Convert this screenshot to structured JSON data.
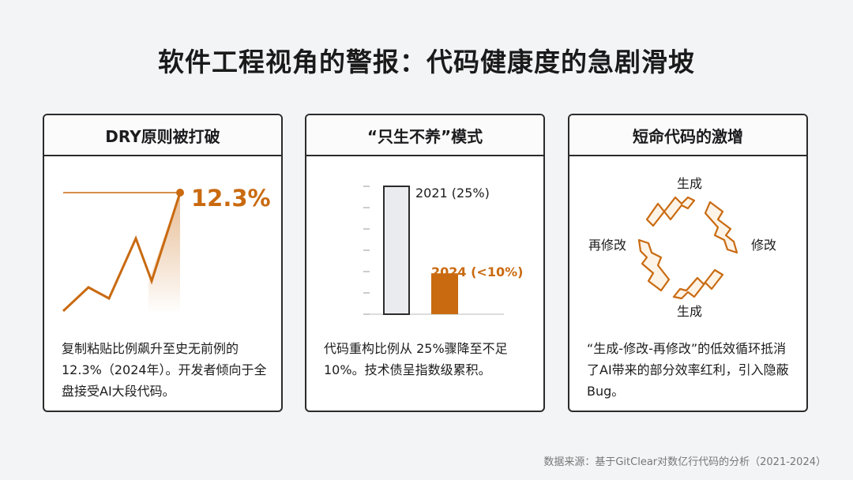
{
  "title": "软件工程视角的警报：代码健康度的急剧滑坡",
  "colors": {
    "accent": "#c96a10",
    "bar_2021": "#e9ebee",
    "border": "#2b2b2b"
  },
  "cards": [
    {
      "heading": "DRY原则被打破",
      "value_label": "12.3%",
      "description": "复制粘贴比例飙升至史无前例的12.3%（2024年）。开发者倾向于全盘接受AI大段代码。"
    },
    {
      "heading": "“只生不养”模式",
      "bar_2021_label": "2021 (25%)",
      "bar_2024_label": "2024 (<10%)",
      "bar_values": {
        "2021": 25,
        "2024": 8
      },
      "description": "代码重构比例从 25%骤降至不足10%。技术债呈指数级累积。"
    },
    {
      "heading": "短命代码的激增",
      "cycle_labels": {
        "top": "生成",
        "right": "修改",
        "bottom": "生成",
        "left": "再修改"
      },
      "description": "“生成-修改-再修改”的低效循环抵消了AI带来的部分效率红利，引入隐蔽Bug。"
    }
  ],
  "source": "数据来源：基于GitClear对数亿行代码的分析（2021-2024）"
}
